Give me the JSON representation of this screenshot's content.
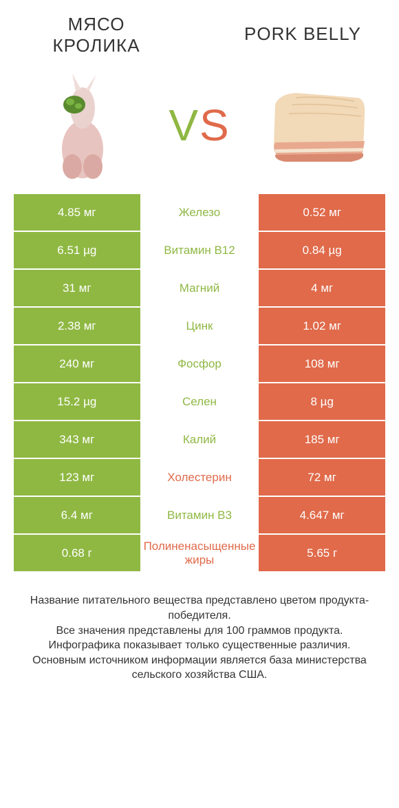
{
  "colors": {
    "green": "#8fb843",
    "red": "#e06a4a",
    "text": "#333333",
    "white": "#ffffff"
  },
  "header": {
    "left_title_line1": "МЯСО",
    "left_title_line2": "КРОЛИКА",
    "right_title": "PORK BELLY",
    "vs_v": "V",
    "vs_s": "S"
  },
  "rows": [
    {
      "left": "4.85 мг",
      "mid": "Железо",
      "right": "0.52 мг",
      "winner": "left"
    },
    {
      "left": "6.51 µg",
      "mid": "Витамин B12",
      "right": "0.84 µg",
      "winner": "left"
    },
    {
      "left": "31 мг",
      "mid": "Магний",
      "right": "4 мг",
      "winner": "left"
    },
    {
      "left": "2.38 мг",
      "mid": "Цинк",
      "right": "1.02 мг",
      "winner": "left"
    },
    {
      "left": "240 мг",
      "mid": "Фосфор",
      "right": "108 мг",
      "winner": "left"
    },
    {
      "left": "15.2 µg",
      "mid": "Селен",
      "right": "8 µg",
      "winner": "left"
    },
    {
      "left": "343 мг",
      "mid": "Калий",
      "right": "185 мг",
      "winner": "left"
    },
    {
      "left": "123 мг",
      "mid": "Холестерин",
      "right": "72 мг",
      "winner": "right"
    },
    {
      "left": "6.4 мг",
      "mid": "Витамин B3",
      "right": "4.647 мг",
      "winner": "left"
    },
    {
      "left": "0.68 г",
      "mid": "Полиненасыщенные жиры",
      "right": "5.65 г",
      "winner": "right"
    }
  ],
  "footer": {
    "line1": "Название питательного вещества представлено цветом продукта-победителя.",
    "line2": "Все значения представлены для 100 граммов продукта.",
    "line3": "Инфографика показывает только существенные различия.",
    "line4": "Основным источником информации является база министерства сельского хозяйства США."
  }
}
